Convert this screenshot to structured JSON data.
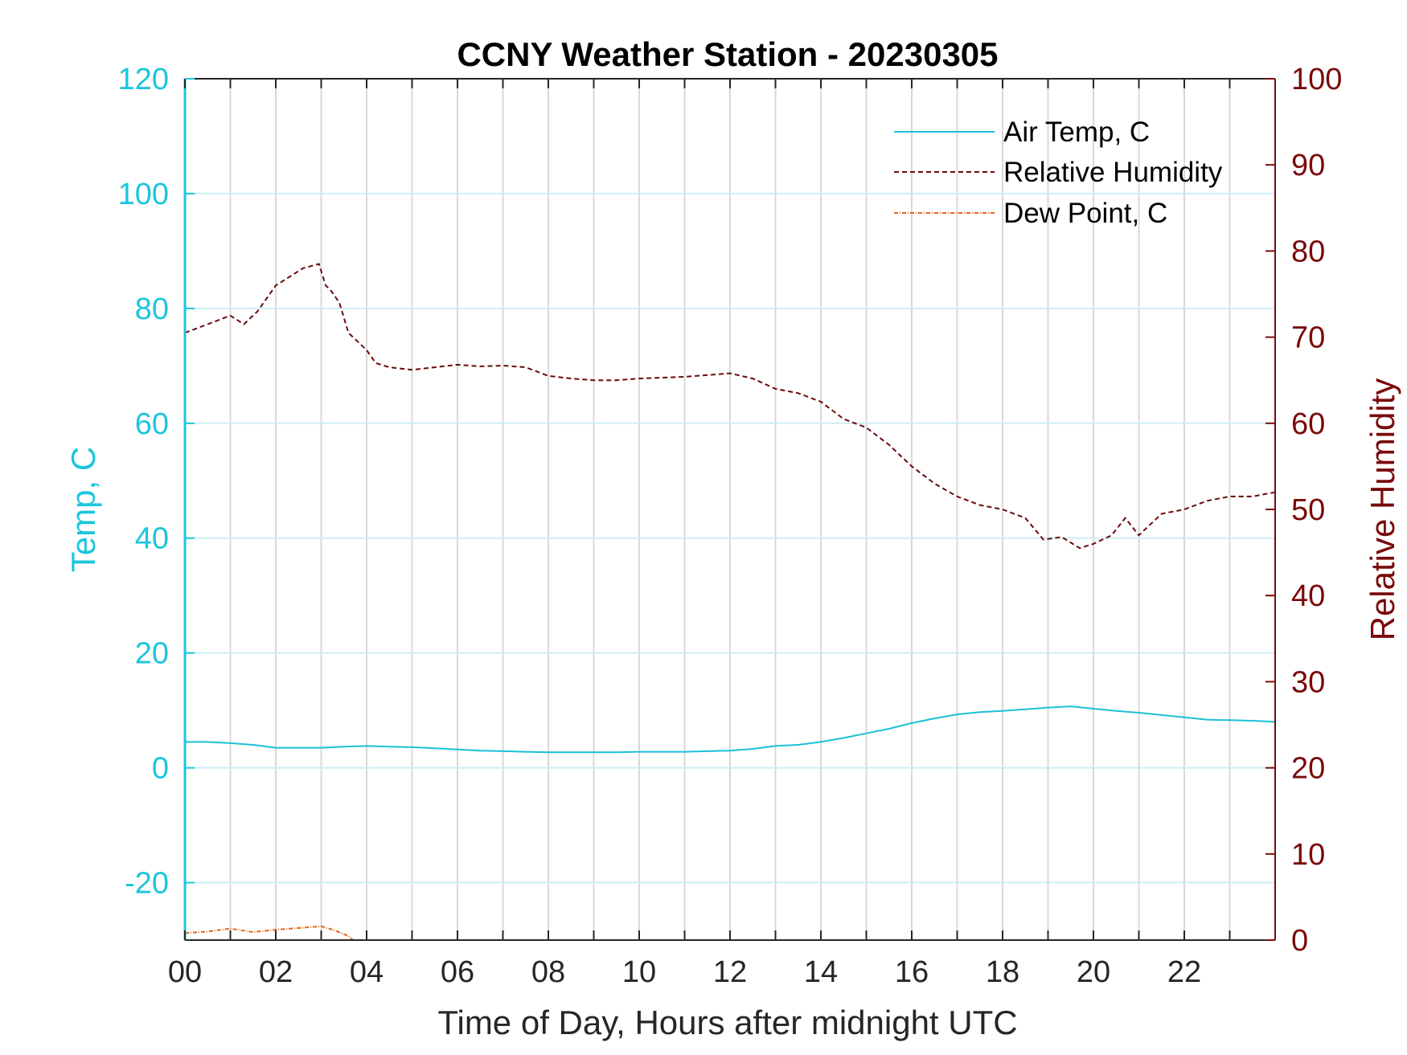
{
  "chart_data": {
    "type": "line",
    "title": "CCNY Weather Station - 20230305",
    "xlabel": "Time of Day, Hours after midnight UTC",
    "ylabel_left": "Temp, C",
    "ylabel_right": "Relative Humidity",
    "xlim": [
      0,
      24
    ],
    "ylim_left": [
      -30,
      120
    ],
    "ylim_right": [
      0,
      100
    ],
    "x_ticks": [
      "00",
      "02",
      "04",
      "06",
      "08",
      "10",
      "12",
      "14",
      "16",
      "18",
      "20",
      "22"
    ],
    "y_ticks_left": [
      "-20",
      "0",
      "20",
      "40",
      "60",
      "80",
      "100",
      "120"
    ],
    "y_ticks_right": [
      "0",
      "10",
      "20",
      "30",
      "40",
      "50",
      "60",
      "70",
      "80",
      "90",
      "100"
    ],
    "grid": true,
    "legend_position": "top-right",
    "colors": {
      "left_axis": "#1bc6dc",
      "right_axis": "#7a0a0a",
      "air_temp": "#1bc1d6",
      "humidity": "#6b0a0a",
      "dew_point": "#e0631c",
      "grid": "#d8d8d8"
    },
    "series": [
      {
        "name": "Air Temp, C",
        "axis": "left",
        "style": "solid",
        "x": [
          0,
          0.5,
          1,
          1.5,
          2,
          2.5,
          3,
          3.5,
          4,
          4.5,
          5,
          5.5,
          6,
          6.5,
          7,
          7.5,
          8,
          8.5,
          9,
          9.5,
          10,
          10.5,
          11,
          11.5,
          12,
          12.5,
          13,
          13.5,
          14,
          14.5,
          15,
          15.5,
          16,
          16.5,
          17,
          17.5,
          18,
          18.5,
          19,
          19.5,
          20,
          20.5,
          21,
          21.5,
          22,
          22.5,
          23,
          23.5,
          24
        ],
        "values": [
          4.5,
          4.5,
          4.3,
          4.0,
          3.5,
          3.5,
          3.5,
          3.7,
          3.8,
          3.7,
          3.6,
          3.4,
          3.2,
          3.0,
          2.9,
          2.8,
          2.7,
          2.7,
          2.7,
          2.7,
          2.8,
          2.8,
          2.8,
          2.9,
          3.0,
          3.3,
          3.8,
          4.0,
          4.5,
          5.2,
          6.0,
          6.8,
          7.8,
          8.6,
          9.3,
          9.7,
          9.9,
          10.2,
          10.5,
          10.7,
          10.3,
          9.9,
          9.6,
          9.2,
          8.8,
          8.4,
          8.3,
          8.2,
          8.0
        ]
      },
      {
        "name": "Relative Humidity",
        "axis": "right",
        "style": "dashed",
        "x": [
          0,
          0.5,
          1,
          1.3,
          1.6,
          2,
          2.3,
          2.6,
          2.95,
          3.1,
          3.2,
          3.4,
          3.6,
          4,
          4.2,
          4.5,
          5,
          5.5,
          6,
          6.5,
          7,
          7.5,
          8,
          8.5,
          9,
          9.5,
          10,
          10.5,
          11,
          11.5,
          12,
          12.5,
          13,
          13.5,
          14,
          14.5,
          15,
          15.5,
          16,
          16.5,
          17,
          17.5,
          18,
          18.5,
          18.9,
          19.3,
          19.7,
          20,
          20.4,
          20.7,
          21,
          21.5,
          22,
          22.5,
          23,
          23.5,
          24
        ],
        "values": [
          70.5,
          71.5,
          72.5,
          71.5,
          73.0,
          76.0,
          77.0,
          78.0,
          78.5,
          76.0,
          75.5,
          74.0,
          70.5,
          68.5,
          67.0,
          66.5,
          66.2,
          66.5,
          66.8,
          66.6,
          66.7,
          66.5,
          65.5,
          65.2,
          65.0,
          65.0,
          65.2,
          65.3,
          65.4,
          65.6,
          65.8,
          65.2,
          64.0,
          63.5,
          62.5,
          60.5,
          59.5,
          57.5,
          55.0,
          53.0,
          51.5,
          50.5,
          50.0,
          49.0,
          46.5,
          46.8,
          45.5,
          46.0,
          47.0,
          49.0,
          47.0,
          49.5,
          50.0,
          51.0,
          51.5,
          51.5,
          52.0
        ]
      },
      {
        "name": "Dew Point, C",
        "axis": "left",
        "style": "dash-dot",
        "x": [
          0,
          0.5,
          1,
          1.5,
          2,
          2.5,
          3,
          3.3,
          3.6,
          3.7
        ],
        "values": [
          -28.8,
          -28.5,
          -28.0,
          -28.6,
          -28.2,
          -27.9,
          -27.6,
          -28.3,
          -29.3,
          -30.0
        ]
      }
    ]
  }
}
